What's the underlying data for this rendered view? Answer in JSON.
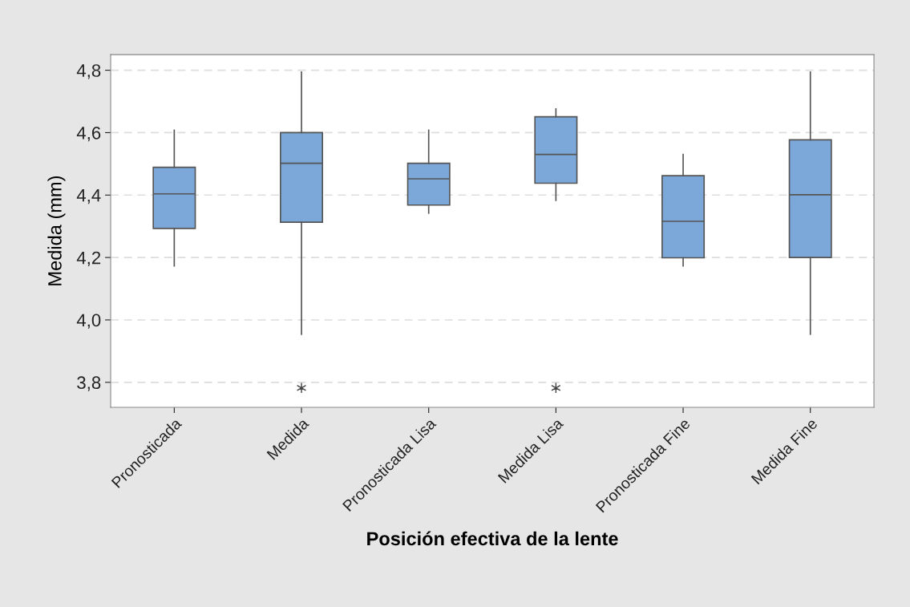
{
  "chart_data": {
    "type": "box",
    "xlabel": "Posición efectiva de la lente",
    "ylabel": "Medida (mm)",
    "categories": [
      "Pronosticada",
      "Medida",
      "Pronosticada Lisa",
      "Medida Lisa",
      "Pronosticada Fine",
      "Medida Fine"
    ],
    "series": [
      {
        "color": "#7ba7d9",
        "boxes": [
          {
            "low": 4.173,
            "q1": 4.293,
            "median": 4.404,
            "q3": 4.489,
            "high": 4.608
          },
          {
            "low": 3.954,
            "q1": 4.313,
            "median": 4.502,
            "q3": 4.6,
            "high": 4.794,
            "outliers": [
              3.782
            ]
          },
          {
            "low": 4.342,
            "q1": 4.368,
            "median": 4.452,
            "q3": 4.502,
            "high": 4.608
          },
          {
            "low": 4.383,
            "q1": 4.438,
            "median": 4.53,
            "q3": 4.651,
            "high": 4.676,
            "outliers": [
              3.782
            ]
          },
          {
            "low": 4.173,
            "q1": 4.199,
            "median": 4.316,
            "q3": 4.462,
            "high": 4.53
          },
          {
            "low": 3.954,
            "q1": 4.2,
            "median": 4.401,
            "q3": 4.577,
            "high": 4.794
          }
        ]
      }
    ],
    "ylim": [
      3.72,
      4.85
    ],
    "yticks": [
      {
        "value": 3.8,
        "label": "3,8"
      },
      {
        "value": 4.0,
        "label": "4,0"
      },
      {
        "value": 4.2,
        "label": "4,2"
      },
      {
        "value": 4.4,
        "label": "4,4"
      },
      {
        "value": 4.6,
        "label": "4,6"
      },
      {
        "value": 4.8,
        "label": "4,8"
      }
    ],
    "grid": "y"
  }
}
